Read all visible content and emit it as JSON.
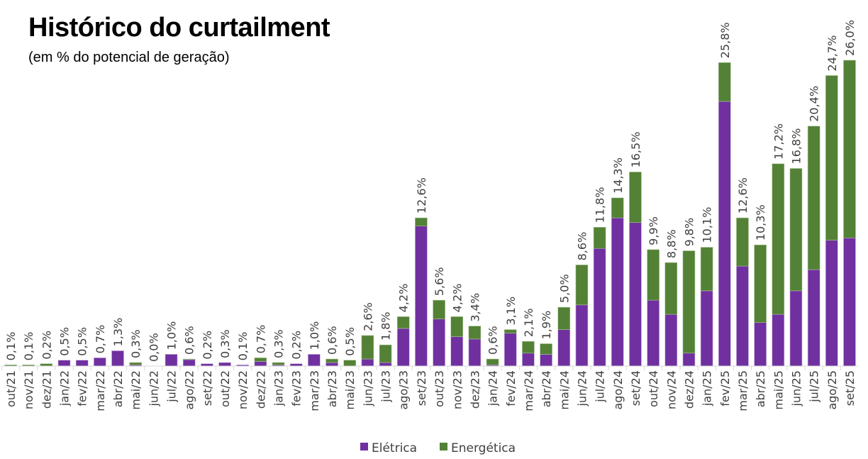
{
  "chart_data": {
    "type": "bar",
    "stacked": true,
    "title": "Histórico do curtailment",
    "subtitle": "(em % do potencial de geração)",
    "xlabel": "",
    "ylabel": "",
    "ylim": [
      0,
      26
    ],
    "grid": false,
    "legend_position": "bottom",
    "colors": {
      "Elétrica": "#7030a0",
      "Energética": "#538135"
    },
    "categories": [
      "out/21",
      "nov/21",
      "dez/21",
      "jan/22",
      "fev/22",
      "mar/22",
      "abr/22",
      "mai/22",
      "jun/22",
      "jul/22",
      "ago/22",
      "set/22",
      "out/22",
      "nov/22",
      "dez/22",
      "jan/23",
      "fev/23",
      "mar/23",
      "abr/23",
      "mai/23",
      "jun/23",
      "jul/23",
      "ago/23",
      "set/23",
      "out/23",
      "nov/23",
      "dez/23",
      "jan/24",
      "fev/24",
      "mar/24",
      "abr/24",
      "mai/24",
      "jun/24",
      "jul/24",
      "ago/24",
      "set/24",
      "out/24",
      "nov/24",
      "dez/24",
      "jan/25",
      "fev/25",
      "mar/25",
      "abr/25",
      "mai/25",
      "jun/25",
      "jul/25",
      "ago/25",
      "set/25"
    ],
    "series": [
      {
        "name": "Elétrica",
        "values": [
          0.0,
          0.0,
          0.0,
          0.5,
          0.5,
          0.7,
          1.3,
          0.1,
          0.0,
          1.0,
          0.55,
          0.2,
          0.3,
          0.1,
          0.4,
          0.1,
          0.2,
          1.0,
          0.3,
          0.0,
          0.6,
          0.3,
          3.2,
          11.9,
          4.0,
          2.5,
          2.3,
          0.1,
          2.8,
          1.1,
          1.0,
          3.1,
          5.2,
          10.0,
          12.6,
          12.2,
          5.6,
          4.4,
          1.1,
          6.4,
          22.5,
          8.5,
          3.7,
          4.4,
          6.4,
          8.2,
          10.7,
          10.9
        ]
      },
      {
        "name": "Energética",
        "values": [
          0.1,
          0.1,
          0.2,
          0.0,
          0.0,
          0.0,
          0.0,
          0.2,
          0.0,
          0.0,
          0.05,
          0.0,
          0.0,
          0.0,
          0.3,
          0.2,
          0.0,
          0.0,
          0.3,
          0.5,
          2.0,
          1.5,
          1.0,
          0.7,
          1.6,
          1.7,
          1.1,
          0.5,
          0.3,
          1.0,
          0.9,
          1.9,
          3.4,
          1.8,
          1.7,
          4.3,
          4.3,
          4.4,
          8.7,
          3.7,
          3.3,
          4.1,
          6.6,
          12.8,
          10.4,
          12.2,
          14.0,
          15.1
        ]
      }
    ],
    "totals": [
      0.1,
      0.1,
      0.2,
      0.5,
      0.5,
      0.7,
      1.3,
      0.3,
      0.0,
      1.0,
      0.6,
      0.2,
      0.3,
      0.1,
      0.7,
      0.3,
      0.2,
      1.0,
      0.6,
      0.5,
      2.6,
      1.8,
      4.2,
      12.6,
      5.6,
      4.2,
      3.4,
      0.6,
      3.1,
      2.1,
      1.9,
      5.0,
      8.6,
      11.8,
      14.3,
      16.5,
      9.9,
      8.8,
      9.8,
      10.1,
      25.8,
      12.6,
      10.3,
      17.2,
      16.8,
      20.4,
      24.7,
      26.0
    ],
    "data_labels": [
      "0,1%",
      "0,1%",
      "0,2%",
      "0,5%",
      "0,5%",
      "0,7%",
      "1,3%",
      "0,3%",
      "0,0%",
      "1,0%",
      "0,6%",
      "0,2%",
      "0,3%",
      "0,1%",
      "0,7%",
      "0,3%",
      "0,2%",
      "1,0%",
      "0,6%",
      "0,5%",
      "2,6%",
      "1,8%",
      "4,2%",
      "12,6%",
      "5,6%",
      "4,2%",
      "3,4%",
      "0,6%",
      "3,1%",
      "2,1%",
      "1,9%",
      "5,0%",
      "8,6%",
      "11,8%",
      "14,3%",
      "16,5%",
      "9,9%",
      "8,8%",
      "9,8%",
      "10,1%",
      "25,8%",
      "12,6%",
      "10,3%",
      "17,2%",
      "16,8%",
      "20,4%",
      "24,7%",
      "26,0%"
    ]
  }
}
